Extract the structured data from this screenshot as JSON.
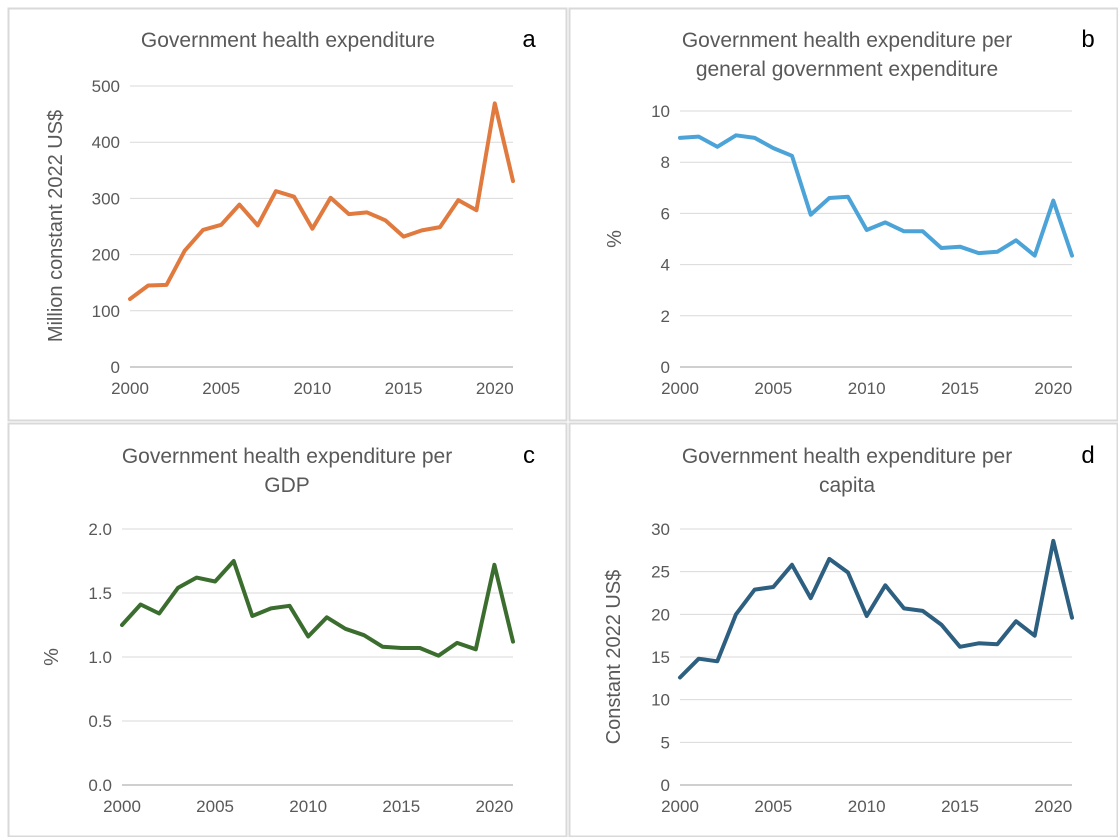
{
  "chart_data": [
    {
      "type": "line",
      "panel": "a",
      "title": [
        "Government health expenditure"
      ],
      "ylabel": "Million constant 2022 US$",
      "xlabel": "",
      "color": "#E07A3F",
      "x": [
        2000,
        2001,
        2002,
        2003,
        2004,
        2005,
        2006,
        2007,
        2008,
        2009,
        2010,
        2011,
        2012,
        2013,
        2014,
        2015,
        2016,
        2017,
        2018,
        2019,
        2020,
        2021
      ],
      "values": [
        121,
        145,
        146,
        207,
        244,
        253,
        289,
        252,
        313,
        303,
        246,
        301,
        272,
        275,
        261,
        232,
        243,
        249,
        297,
        279,
        469,
        331
      ],
      "xlim": [
        2000,
        2021
      ],
      "ylim": [
        0,
        500
      ],
      "xticks": [
        "2000",
        "2005",
        "2010",
        "2015",
        "2020"
      ],
      "yticks": [
        "0",
        "100",
        "200",
        "300",
        "400",
        "500"
      ]
    },
    {
      "type": "line",
      "panel": "b",
      "title": [
        "Government health expenditure per",
        "general government expenditure"
      ],
      "ylabel": "%",
      "xlabel": "",
      "color": "#4BA3D8",
      "x": [
        2000,
        2001,
        2002,
        2003,
        2004,
        2005,
        2006,
        2007,
        2008,
        2009,
        2010,
        2011,
        2012,
        2013,
        2014,
        2015,
        2016,
        2017,
        2018,
        2019,
        2020,
        2021
      ],
      "values": [
        8.95,
        9.0,
        8.6,
        9.05,
        8.95,
        8.55,
        8.25,
        5.95,
        6.6,
        6.65,
        5.35,
        5.65,
        5.3,
        5.3,
        4.65,
        4.7,
        4.45,
        4.5,
        4.95,
        4.35,
        6.5,
        4.35
      ],
      "xlim": [
        2000,
        2021
      ],
      "ylim": [
        0,
        10
      ],
      "xticks": [
        "2000",
        "2005",
        "2010",
        "2015",
        "2020"
      ],
      "yticks": [
        "0",
        "2",
        "4",
        "6",
        "8",
        "10"
      ]
    },
    {
      "type": "line",
      "panel": "c",
      "title": [
        "Government health expenditure per",
        "GDP"
      ],
      "ylabel": "%",
      "xlabel": "",
      "color": "#3B6E2E",
      "x": [
        2000,
        2001,
        2002,
        2003,
        2004,
        2005,
        2006,
        2007,
        2008,
        2009,
        2010,
        2011,
        2012,
        2013,
        2014,
        2015,
        2016,
        2017,
        2018,
        2019,
        2020,
        2021
      ],
      "values": [
        1.25,
        1.41,
        1.34,
        1.54,
        1.62,
        1.59,
        1.75,
        1.32,
        1.38,
        1.4,
        1.16,
        1.31,
        1.22,
        1.17,
        1.08,
        1.07,
        1.07,
        1.01,
        1.11,
        1.06,
        1.72,
        1.12
      ],
      "xlim": [
        2000,
        2021
      ],
      "ylim": [
        0,
        2
      ],
      "xticks": [
        "2000",
        "2005",
        "2010",
        "2015",
        "2020"
      ],
      "yticks": [
        "0.0",
        "0.5",
        "1.0",
        "1.5",
        "2.0"
      ]
    },
    {
      "type": "line",
      "panel": "d",
      "title": [
        "Government health expenditure per",
        "capita"
      ],
      "ylabel": "Constant 2022 US$",
      "xlabel": "",
      "color": "#2D5F80",
      "x": [
        2000,
        2001,
        2002,
        2003,
        2004,
        2005,
        2006,
        2007,
        2008,
        2009,
        2010,
        2011,
        2012,
        2013,
        2014,
        2015,
        2016,
        2017,
        2018,
        2019,
        2020,
        2021
      ],
      "values": [
        12.6,
        14.8,
        14.5,
        20.0,
        22.9,
        23.2,
        25.8,
        21.9,
        26.5,
        24.9,
        19.8,
        23.4,
        20.7,
        20.4,
        18.8,
        16.2,
        16.6,
        16.5,
        19.2,
        17.5,
        28.6,
        19.6
      ],
      "xlim": [
        2000,
        2021
      ],
      "ylim": [
        0,
        30
      ],
      "xticks": [
        "2000",
        "2005",
        "2010",
        "2015",
        "2020"
      ],
      "yticks": [
        "0",
        "5",
        "10",
        "15",
        "20",
        "25",
        "30"
      ]
    }
  ]
}
